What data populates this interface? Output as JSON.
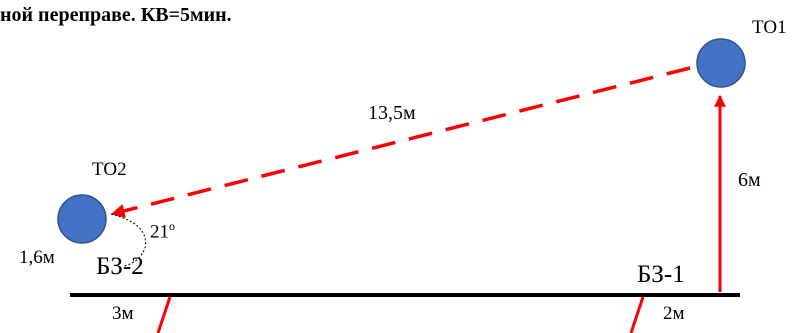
{
  "heading": "ной переправе. КВ=5мин.",
  "points": {
    "to1": "ТО1",
    "to2": "ТО2"
  },
  "zones": {
    "bz1": "БЗ-1",
    "bz2": "БЗ-2"
  },
  "measurements": {
    "diagonal": "13,5м",
    "vertical": "6м",
    "to2_offset": "1,6м",
    "bz2_width": "3м",
    "bz1_width": "2м"
  },
  "angle": {
    "value": "21",
    "unit": "о"
  },
  "colors": {
    "circle_fill": "#4472c4",
    "circle_stroke": "#2f528f",
    "arrow": "#ff0000",
    "line": "#000000"
  }
}
